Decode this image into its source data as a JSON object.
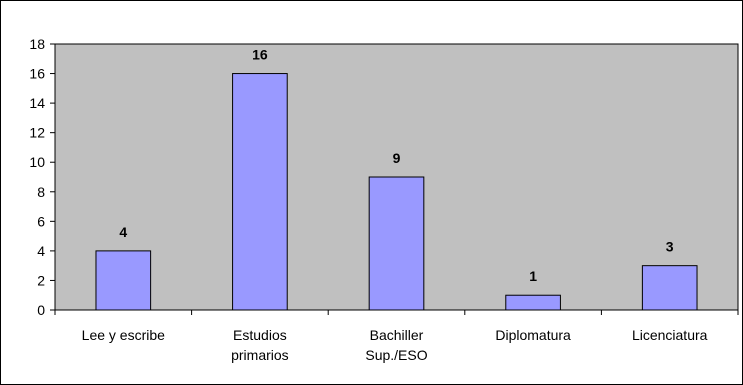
{
  "chart_data": {
    "type": "bar",
    "title": "",
    "xlabel": "",
    "ylabel": "",
    "categories": [
      [
        "Lee y escribe"
      ],
      [
        "Estudios",
        "primarios"
      ],
      [
        "Bachiller",
        "Sup./ESO"
      ],
      [
        "Diplomatura"
      ],
      [
        "Licenciatura"
      ]
    ],
    "values": [
      4,
      16,
      9,
      1,
      3
    ],
    "data_labels": [
      "4",
      "16",
      "9",
      "1",
      "3"
    ],
    "ylim": [
      0,
      18
    ],
    "yticks": [
      0,
      2,
      4,
      6,
      8,
      10,
      12,
      14,
      16,
      18
    ],
    "ytick_labels": [
      "0",
      "2",
      "4",
      "6",
      "8",
      "10",
      "12",
      "14",
      "16",
      "18"
    ],
    "grid": false,
    "legend": "none",
    "colors": {
      "plot_background": "#c0c0c0",
      "bar_fill": "#9999ff",
      "bar_stroke": "#000000",
      "axis": "#000000"
    }
  }
}
